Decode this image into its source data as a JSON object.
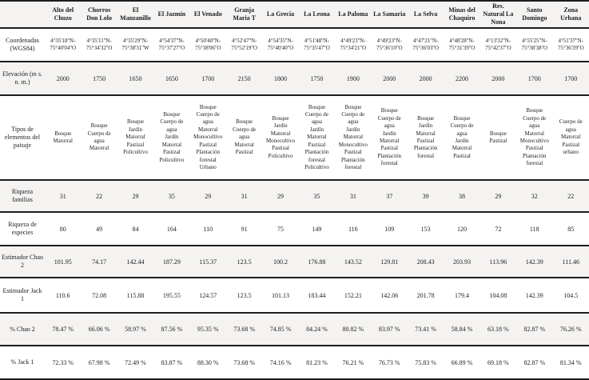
{
  "table": {
    "corner_label": "",
    "row_labels": {
      "coordinates": "Coordenadas (WGS84)",
      "elevation": "Elevación (m s. n. m.)",
      "landscape": "Tipos de elementos del paisaje",
      "familias": "Riqueza familias",
      "especies": "Riqueza de especies",
      "chao2": "Estimador Chao 2",
      "jack1": "Estimador Jack 1",
      "pct_chao2": "% Chao 2",
      "pct_jack1": "% Jack 1"
    },
    "sites": [
      {
        "name": "Alto del Chuzo",
        "coordinates": "4°35'18''N-\n75°40'04''O",
        "elevation": "2000",
        "landscape_elements": [
          "Bosque",
          "Matorral"
        ],
        "riqueza_familias": "31",
        "riqueza_especies": "80",
        "estimador_chao2": "101.95",
        "estimador_jack1": "110.6",
        "pct_chao2": "78.47 %",
        "pct_jack1": "72.33 %"
      },
      {
        "name": "Chorros Don Lolo",
        "coordinates": "4°35'11''N-\n75°34'32''O",
        "elevation": "1750",
        "landscape_elements": [
          "Bosque",
          "Cuerpo de agua",
          "Matorral"
        ],
        "riqueza_familias": "22",
        "riqueza_especies": "49",
        "estimador_chao2": "74.17",
        "estimador_jack1": "72.08",
        "pct_chao2": "66.06 %",
        "pct_jack1": "67.98 %"
      },
      {
        "name": "El Manzanillo",
        "coordinates": "4°35'29''N-\n75°38'31''W",
        "elevation": "1650",
        "landscape_elements": [
          "Bosque",
          "Jardín",
          "Matorral",
          "Pastizal",
          "Policultivo"
        ],
        "riqueza_familias": "29",
        "riqueza_especies": "84",
        "estimador_chao2": "142.44",
        "estimador_jack1": "115.88",
        "pct_chao2": "58.97 %",
        "pct_jack1": "72.49 %"
      },
      {
        "name": "El Jazmín",
        "coordinates": "4°54'37''N-\n75°37'27''O",
        "elevation": "1650",
        "landscape_elements": [
          "Bosque",
          "Cuerpo de agua",
          "Jardín",
          "Matorral",
          "Pastizal",
          "Policultivo"
        ],
        "riqueza_familias": "35",
        "riqueza_especies": "164",
        "estimador_chao2": "187.29",
        "estimador_jack1": "195.55",
        "pct_chao2": "87.56 %",
        "pct_jack1": "83.87 %"
      },
      {
        "name": "El Venado",
        "coordinates": "4°50'40''N-\n75°38'06''O",
        "elevation": "1700",
        "landscape_elements": [
          "Bosque",
          "Cuerpo de agua",
          "Matorral",
          "Monocultivo",
          "Pastizal",
          "Plantación forestal",
          "Urbano"
        ],
        "riqueza_familias": "29",
        "riqueza_especies": "110",
        "estimador_chao2": "115.37",
        "estimador_jack1": "124.57",
        "pct_chao2": "95.35 %",
        "pct_jack1": "88.30 %"
      },
      {
        "name": "Granja Maria T",
        "coordinates": "4°52'47''N-\n75°52'19''O",
        "elevation": "2150",
        "landscape_elements": [
          "Bosque",
          "Cuerpo de agua",
          "Matorral",
          "Pastizal"
        ],
        "riqueza_familias": "31",
        "riqueza_especies": "91",
        "estimador_chao2": "123.5",
        "estimador_jack1": "123.5",
        "pct_chao2": "73.68 %",
        "pct_jack1": "73.68 %"
      },
      {
        "name": "La Grecia",
        "coordinates": "4°54'35''N-\n75°40'40''O",
        "elevation": "1800",
        "landscape_elements": [
          "Bosque",
          "Jardín",
          "Matorral",
          "Monocultivo",
          "Pastizal",
          "Policultivo"
        ],
        "riqueza_familias": "29",
        "riqueza_especies": "75",
        "estimador_chao2": "100.2",
        "estimador_jack1": "101.13",
        "pct_chao2": "74.85 %",
        "pct_jack1": "74.16 %"
      },
      {
        "name": "La Leona",
        "coordinates": "4°51'48''N-\n75°35'47''O",
        "elevation": "1750",
        "landscape_elements": [
          "Bosque",
          "Cuerpo de agua",
          "Jardín",
          "Matorral",
          "Pastizal",
          "Plantación forestal",
          "Policultivo"
        ],
        "riqueza_familias": "35",
        "riqueza_especies": "149",
        "estimador_chao2": "176.88",
        "estimador_jack1": "183.44",
        "pct_chao2": "84.24 %",
        "pct_jack1": "81.23 %"
      },
      {
        "name": "La Paloma",
        "coordinates": "4°49'23''N-\n75°34'21''O",
        "elevation": "1900",
        "landscape_elements": [
          "Bosque",
          "Cuerpo de agua",
          "Jardín",
          "Matorral",
          "Monocultivo",
          "Pastizal",
          "Plantación forestal"
        ],
        "riqueza_familias": "31",
        "riqueza_especies": "116",
        "estimador_chao2": "143.52",
        "estimador_jack1": "152.21",
        "pct_chao2": "80.82 %",
        "pct_jack1": "76.21 %"
      },
      {
        "name": "La Samaria",
        "coordinates": "4°49'23''N-\n75°36'10''O",
        "elevation": "2000",
        "landscape_elements": [
          "Bosque",
          "Cuerpo de agua",
          "Jardín",
          "Matorral",
          "Pastizal",
          "Plantación forestal"
        ],
        "riqueza_familias": "37",
        "riqueza_especies": "109",
        "estimador_chao2": "129.81",
        "estimador_jack1": "142.06",
        "pct_chao2": "83.97 %",
        "pct_jack1": "76.73 %"
      },
      {
        "name": "La Selva",
        "coordinates": "4°47'21''N-\n75°36'03''O",
        "elevation": "2000",
        "landscape_elements": [
          "Bosque",
          "Jardín",
          "Matorral",
          "Pastizal",
          "Plantación forestal"
        ],
        "riqueza_familias": "39",
        "riqueza_especies": "153",
        "estimador_chao2": "208.43",
        "estimador_jack1": "201.78",
        "pct_chao2": "73.41 %",
        "pct_jack1": "75.83 %"
      },
      {
        "name": "Minas del Chaquiro",
        "coordinates": "4°48'28''N-\n75°31'39''O",
        "elevation": "2200",
        "landscape_elements": [
          "Bosque",
          "Cuerpo de agua",
          "Jardín",
          "Matorral",
          "Pastizal"
        ],
        "riqueza_familias": "38",
        "riqueza_especies": "120",
        "estimador_chao2": "203.93",
        "estimador_jack1": "179.4",
        "pct_chao2": "58.84 %",
        "pct_jack1": "66.89 %"
      },
      {
        "name": "Res. Natural La Nona",
        "coordinates": "4°13'32''N-\n75°42'37''O",
        "elevation": "2000",
        "landscape_elements": [
          "Bosque",
          "Pastizal"
        ],
        "riqueza_familias": "29",
        "riqueza_especies": "72",
        "estimador_chao2": "113.96",
        "estimador_jack1": "104.08",
        "pct_chao2": "63.18 %",
        "pct_jack1": "69.18 %"
      },
      {
        "name": "Santo Domingo",
        "coordinates": "4°55'25''N-\n75°38'38''O",
        "elevation": "1700",
        "landscape_elements": [
          "Bosque",
          "Cuerpo de agua",
          "Matorral",
          "Monocultivo",
          "Pastizal",
          "Plantación forestal"
        ],
        "riqueza_familias": "32",
        "riqueza_especies": "118",
        "estimador_chao2": "142.39",
        "estimador_jack1": "142.39",
        "pct_chao2": "82.87 %",
        "pct_jack1": "82.87 %"
      },
      {
        "name": "Zona Urbana",
        "coordinates": "4°51'37''N-\n75°36'39''O",
        "elevation": "1700",
        "landscape_elements": [
          "Cuerpo de agua",
          "Matorral",
          "Pastizal",
          "urbano"
        ],
        "riqueza_familias": "22",
        "riqueza_especies": "85",
        "estimador_chao2": "111.46",
        "estimador_jack1": "104.5",
        "pct_chao2": "76.26 %",
        "pct_jack1": "81.34 %"
      }
    ]
  }
}
